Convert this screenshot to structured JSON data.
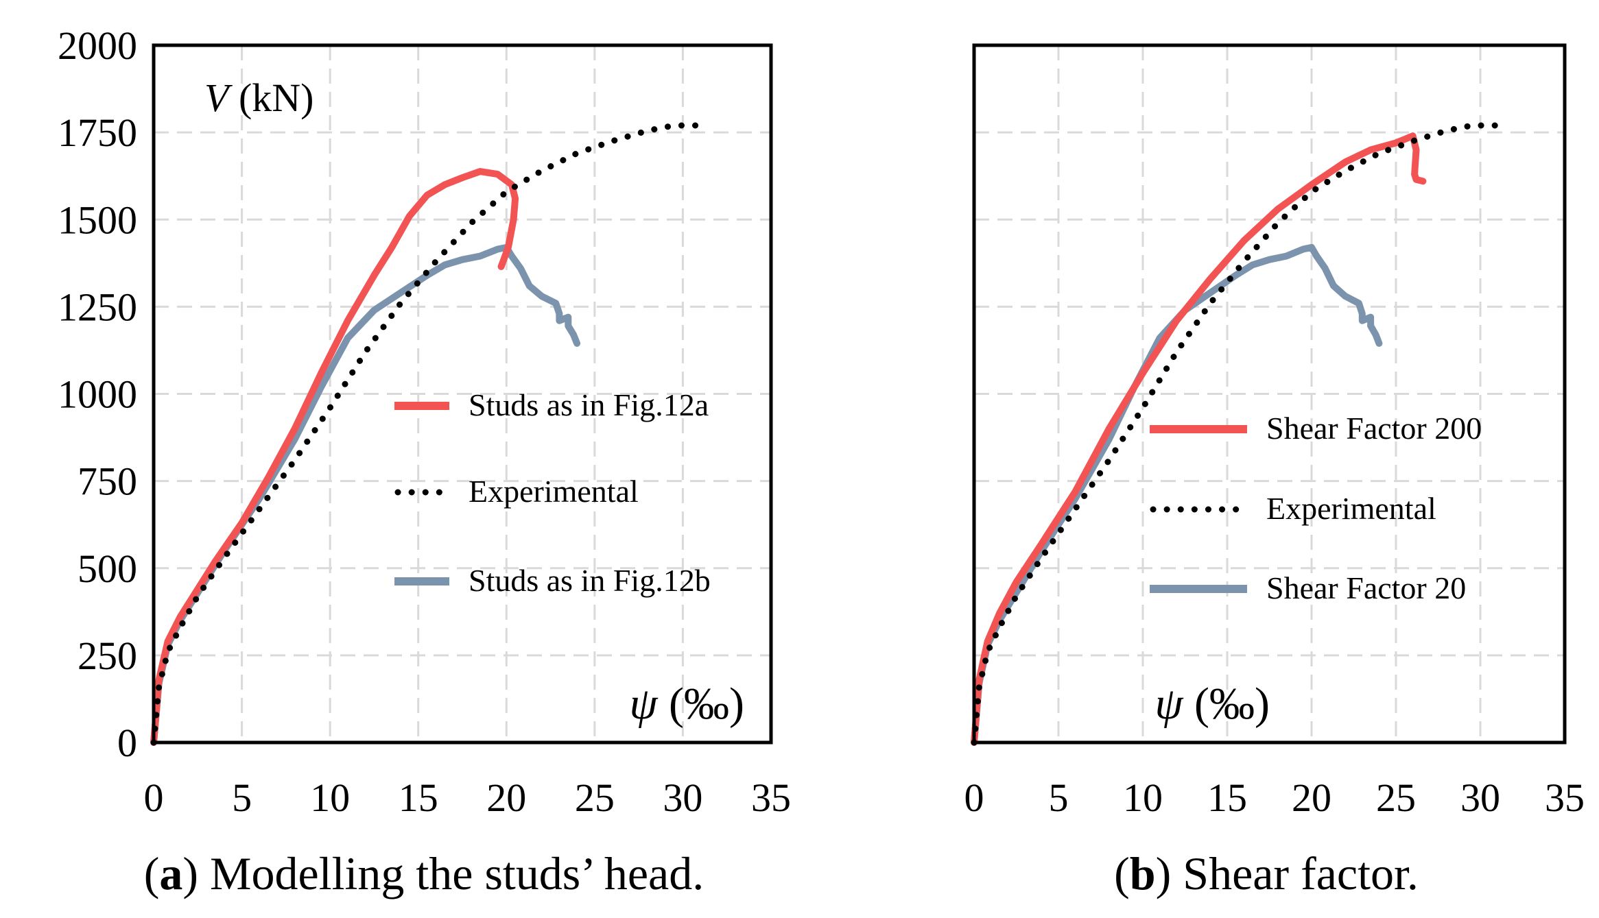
{
  "chart_data": [
    {
      "panel": "a",
      "type": "line",
      "caption_letter": "a",
      "caption_text": "Modelling the studs’ head.",
      "ylabel": {
        "var": "V",
        "unit": "(kN)"
      },
      "xlabel": {
        "var": "ψ",
        "unit": "(‰)"
      },
      "xlim": [
        0,
        35
      ],
      "ylim": [
        0,
        2000
      ],
      "xticks": [
        0,
        5,
        10,
        15,
        20,
        25,
        30,
        35
      ],
      "yticks": [
        0,
        250,
        500,
        750,
        1000,
        1250,
        1500,
        1750,
        2000
      ],
      "grid": true,
      "legend_position": "center-right",
      "series": [
        {
          "name": "Studs as in Fig.12a",
          "color": "#f25454",
          "style": "solid",
          "points": [
            [
              0,
              0
            ],
            [
              0.3,
              180
            ],
            [
              0.8,
              290
            ],
            [
              1.5,
              360
            ],
            [
              2.5,
              440
            ],
            [
              3.5,
              520
            ],
            [
              5,
              630
            ],
            [
              6.5,
              760
            ],
            [
              8,
              900
            ],
            [
              9.5,
              1060
            ],
            [
              11,
              1210
            ],
            [
              12.5,
              1340
            ],
            [
              13.5,
              1420
            ],
            [
              14.5,
              1510
            ],
            [
              15.5,
              1570
            ],
            [
              16.5,
              1600
            ],
            [
              17.5,
              1620
            ],
            [
              18.5,
              1638
            ],
            [
              19.5,
              1630
            ],
            [
              20.3,
              1600
            ],
            [
              20.5,
              1560
            ],
            [
              20.4,
              1500
            ],
            [
              20.1,
              1420
            ],
            [
              19.7,
              1365
            ]
          ]
        },
        {
          "name": "Experimental",
          "color": "#000000",
          "style": "dotted",
          "points": [
            [
              0,
              0
            ],
            [
              0.3,
              160
            ],
            [
              0.8,
              260
            ],
            [
              1.5,
              330
            ],
            [
              2.5,
              420
            ],
            [
              4,
              530
            ],
            [
              6,
              670
            ],
            [
              8,
              810
            ],
            [
              10,
              960
            ],
            [
              12,
              1120
            ],
            [
              14,
              1260
            ],
            [
              16,
              1380
            ],
            [
              18,
              1490
            ],
            [
              20,
              1580
            ],
            [
              22,
              1640
            ],
            [
              24,
              1690
            ],
            [
              26,
              1725
            ],
            [
              28,
              1755
            ],
            [
              29.5,
              1770
            ],
            [
              31,
              1770
            ]
          ]
        },
        {
          "name": "Studs as in Fig.12b",
          "color": "#7b93ad",
          "style": "solid",
          "points": [
            [
              0,
              0
            ],
            [
              0.3,
              170
            ],
            [
              0.8,
              280
            ],
            [
              1.5,
              350
            ],
            [
              2.5,
              430
            ],
            [
              4,
              550
            ],
            [
              6,
              700
            ],
            [
              8,
              870
            ],
            [
              9.5,
              1020
            ],
            [
              11,
              1160
            ],
            [
              12.5,
              1240
            ],
            [
              14,
              1290
            ],
            [
              15.5,
              1340
            ],
            [
              16.5,
              1370
            ],
            [
              17.5,
              1385
            ],
            [
              18.5,
              1395
            ],
            [
              19.5,
              1415
            ],
            [
              20,
              1420
            ],
            [
              20.3,
              1395
            ],
            [
              20.8,
              1360
            ],
            [
              21.3,
              1310
            ],
            [
              22,
              1280
            ],
            [
              22.8,
              1260
            ],
            [
              23,
              1230
            ],
            [
              23,
              1210
            ],
            [
              23.5,
              1220
            ],
            [
              23.5,
              1195
            ],
            [
              23.8,
              1170
            ],
            [
              24,
              1145
            ]
          ]
        }
      ]
    },
    {
      "panel": "b",
      "type": "line",
      "caption_letter": "b",
      "caption_text": "Shear factor.",
      "ylabel": {
        "var": "",
        "unit": ""
      },
      "xlabel": {
        "var": "ψ",
        "unit": "(‰)"
      },
      "xlim": [
        0,
        35
      ],
      "ylim": [
        0,
        2000
      ],
      "xticks": [
        0,
        5,
        10,
        15,
        20,
        25,
        30,
        35
      ],
      "yticks": [],
      "grid": true,
      "legend_position": "center-right",
      "series": [
        {
          "name": "Shear Factor 200",
          "color": "#f25454",
          "style": "solid",
          "points": [
            [
              0,
              0
            ],
            [
              0.3,
              180
            ],
            [
              0.8,
              290
            ],
            [
              1.5,
              370
            ],
            [
              2.5,
              460
            ],
            [
              4,
              570
            ],
            [
              6,
              720
            ],
            [
              8,
              900
            ],
            [
              10,
              1060
            ],
            [
              12,
              1210
            ],
            [
              14,
              1330
            ],
            [
              16,
              1440
            ],
            [
              18,
              1530
            ],
            [
              20,
              1600
            ],
            [
              22,
              1665
            ],
            [
              23.5,
              1700
            ],
            [
              25,
              1720
            ],
            [
              26,
              1740
            ],
            [
              26.2,
              1700
            ],
            [
              26.1,
              1630
            ],
            [
              26.2,
              1615
            ],
            [
              26.6,
              1610
            ]
          ]
        },
        {
          "name": "Experimental",
          "color": "#000000",
          "style": "dotted",
          "points": [
            [
              0,
              0
            ],
            [
              0.3,
              160
            ],
            [
              0.8,
              260
            ],
            [
              1.5,
              330
            ],
            [
              2.5,
              420
            ],
            [
              4,
              530
            ],
            [
              6,
              670
            ],
            [
              8,
              810
            ],
            [
              10,
              960
            ],
            [
              12,
              1120
            ],
            [
              14,
              1260
            ],
            [
              16,
              1380
            ],
            [
              18,
              1490
            ],
            [
              20,
              1580
            ],
            [
              22,
              1640
            ],
            [
              24,
              1690
            ],
            [
              26,
              1725
            ],
            [
              28,
              1755
            ],
            [
              29.5,
              1770
            ],
            [
              31,
              1770
            ]
          ]
        },
        {
          "name": "Shear Factor 20",
          "color": "#7b93ad",
          "style": "solid",
          "points": [
            [
              0,
              0
            ],
            [
              0.3,
              170
            ],
            [
              0.8,
              280
            ],
            [
              1.5,
              350
            ],
            [
              2.5,
              430
            ],
            [
              4,
              550
            ],
            [
              6,
              700
            ],
            [
              8,
              870
            ],
            [
              9.5,
              1020
            ],
            [
              11,
              1160
            ],
            [
              12.5,
              1240
            ],
            [
              14,
              1290
            ],
            [
              15.5,
              1340
            ],
            [
              16.5,
              1370
            ],
            [
              17.5,
              1385
            ],
            [
              18.5,
              1395
            ],
            [
              19.5,
              1415
            ],
            [
              20,
              1420
            ],
            [
              20.3,
              1395
            ],
            [
              20.8,
              1360
            ],
            [
              21.3,
              1310
            ],
            [
              22,
              1280
            ],
            [
              22.8,
              1260
            ],
            [
              23,
              1230
            ],
            [
              23,
              1210
            ],
            [
              23.5,
              1220
            ],
            [
              23.5,
              1195
            ],
            [
              23.8,
              1170
            ],
            [
              24,
              1145
            ]
          ]
        }
      ]
    }
  ]
}
